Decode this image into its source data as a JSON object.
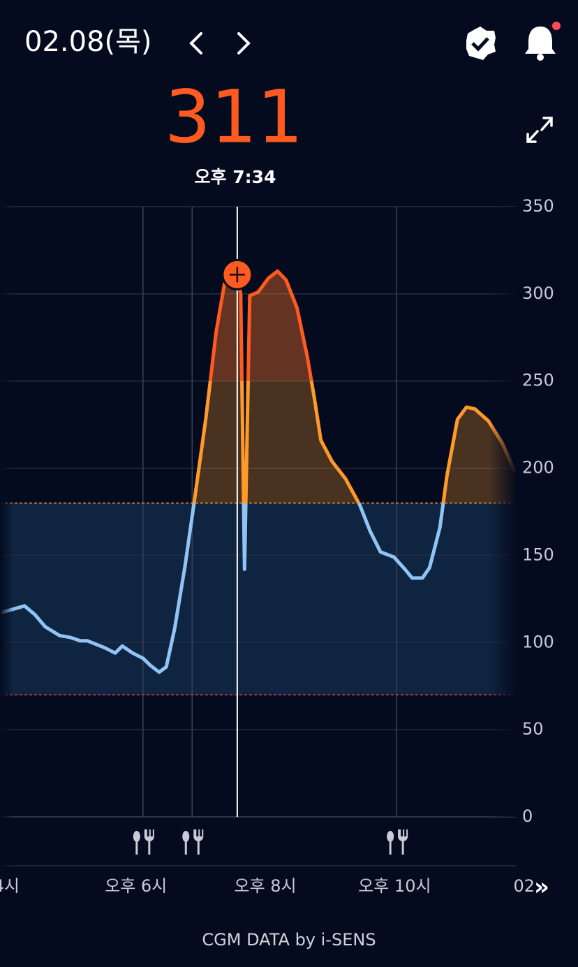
{
  "header": {
    "date": "02.08(목)"
  },
  "chart_data": {
    "type": "line",
    "selected": {
      "value": 311,
      "time": "오후 7:34",
      "x": 19.567
    },
    "x": [
      15.9,
      16.28,
      16.44,
      16.6,
      16.82,
      16.98,
      17.14,
      17.25,
      17.52,
      17.68,
      17.79,
      17.95,
      18.11,
      18.22,
      18.36,
      18.47,
      18.6,
      18.76,
      18.9,
      19.08,
      19.24,
      19.37,
      19.46,
      19.567,
      19.62,
      19.68,
      19.76,
      19.89,
      20.05,
      20.19,
      20.32,
      20.49,
      20.65,
      20.76,
      20.86,
      21.03,
      21.24,
      21.46,
      21.62,
      21.78,
      21.99,
      22.16,
      22.27,
      22.43,
      22.54,
      22.7,
      22.81,
      22.97,
      23.11,
      23.24,
      23.45,
      23.67,
      23.86
    ],
    "values": [
      117,
      121,
      116,
      109,
      104,
      103,
      101,
      101,
      97,
      94,
      98,
      94,
      91,
      87,
      83,
      86,
      108,
      144,
      180,
      228,
      278,
      306,
      309,
      311,
      300,
      142,
      299,
      301,
      309,
      313,
      308,
      292,
      264,
      240,
      216,
      204,
      194,
      179,
      164,
      152,
      149,
      142,
      137,
      137,
      143,
      166,
      196,
      228,
      235,
      234,
      227,
      214,
      198
    ],
    "colors": {
      "high": "#ff5a1f",
      "above": "#ff9a2a",
      "normal": "#8fc4f5"
    },
    "high_alert": 250,
    "target_high": 180,
    "target_low": 70,
    "meals": [
      18.11,
      18.87,
      22.03
    ],
    "xlim": [
      15.9,
      24.1
    ],
    "xticks": [
      {
        "value": 16,
        "label": "4시"
      },
      {
        "value": 18,
        "label": "오후 6시"
      },
      {
        "value": 20,
        "label": "오후 8시"
      },
      {
        "value": 22,
        "label": "오후 10시"
      },
      {
        "value": 24,
        "label": "02"
      }
    ],
    "ylim": [
      0,
      350
    ],
    "yticks": [
      0,
      50,
      100,
      150,
      200,
      250,
      300,
      350
    ],
    "grid": true
  },
  "footer": "CGM DATA by i-SENS"
}
